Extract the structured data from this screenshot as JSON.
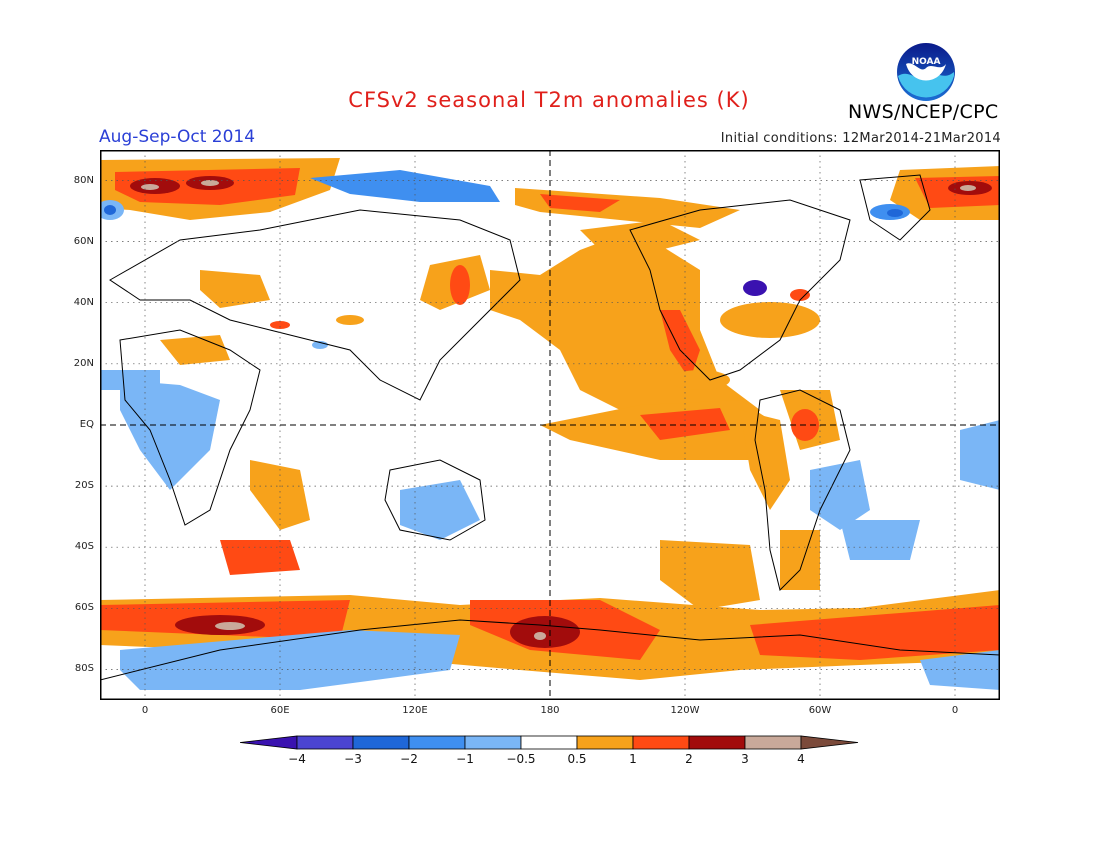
{
  "header": {
    "title": "CFSv2 seasonal T2m anomalies (K)",
    "period": "Aug-Sep-Oct 2014",
    "initial_conditions": "Initial conditions: 12Mar2014-21Mar2014",
    "organization": "NWS/NCEP/CPC",
    "logo_text": "NOAA"
  },
  "map": {
    "projection": "equirectangular",
    "lon_range": [
      -20,
      380
    ],
    "lat_range": [
      -90,
      90
    ],
    "lat_labels": [
      "80N",
      "60N",
      "40N",
      "20N",
      "EQ",
      "20S",
      "40S",
      "60S",
      "80S"
    ],
    "lon_labels": [
      "0",
      "60E",
      "120E",
      "180",
      "120W",
      "60W",
      "0"
    ],
    "grid": "dotted",
    "reference_lines": [
      "equator",
      "dateline"
    ]
  },
  "legend": {
    "boundaries": [
      "-4",
      "-3",
      "-2",
      "-1",
      "-0.5",
      "0.5",
      "1",
      "2",
      "3",
      "4"
    ],
    "colors": [
      "#3a12b0",
      "#4b44d2",
      "#1f67d8",
      "#3f8ff0",
      "#7ab6f6",
      "#ffffff",
      "#f7a21b",
      "#ff4a14",
      "#a20c0c",
      "#c9a99a",
      "#7b4a3a"
    ]
  }
}
